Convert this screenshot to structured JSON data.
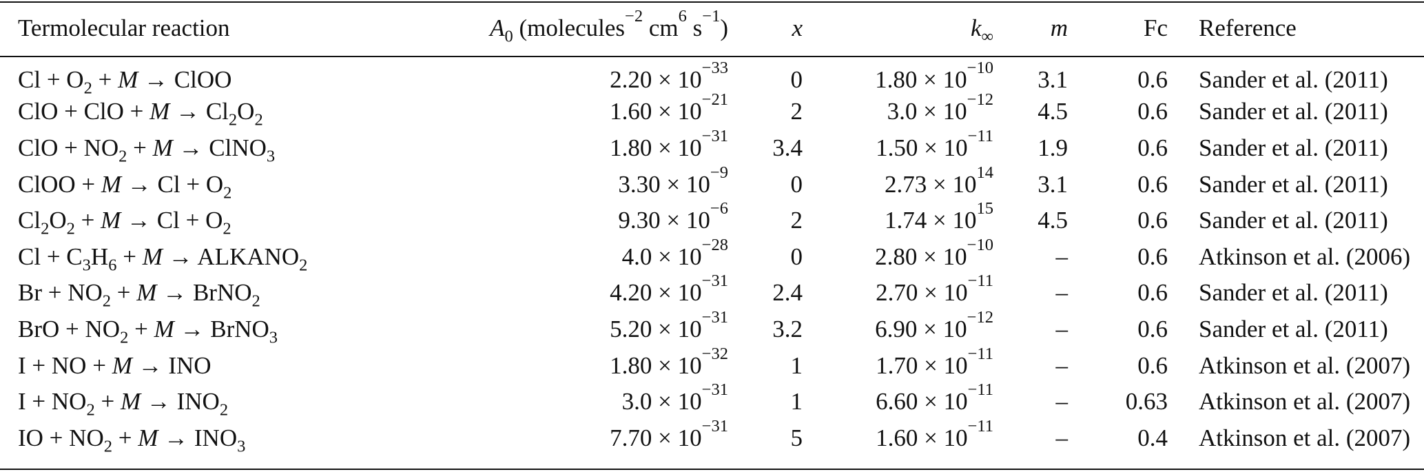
{
  "table": {
    "header": {
      "reaction": "Termolecular reaction",
      "a0_symbol": "A",
      "a0_sub": "0",
      "a0_unit_pre": "(molecules",
      "a0_exp1": "−2",
      "a0_unit_mid": "cm",
      "a0_exp2": "6",
      "a0_unit_s": "s",
      "a0_exp3": "−1",
      "a0_unit_close": ")",
      "x": "x",
      "kinf_symbol": "k",
      "kinf_sub": "∞",
      "m": "m",
      "fc": "Fc",
      "reference": "Reference"
    },
    "rows": [
      {
        "reaction": [
          [
            "t",
            "Cl + O"
          ],
          [
            "sub",
            "2"
          ],
          [
            "t",
            " + "
          ],
          [
            "i",
            "M"
          ],
          [
            "t",
            " → ClOO"
          ]
        ],
        "a0_mant": "2.20",
        "a0_exp": "−33",
        "x": "0",
        "k_mant": "1.80",
        "k_exp": "−10",
        "m": "3.1",
        "fc": "0.6",
        "ref": "Sander et al. (2011)"
      },
      {
        "reaction": [
          [
            "t",
            "ClO + ClO + "
          ],
          [
            "i",
            "M"
          ],
          [
            "t",
            " → Cl"
          ],
          [
            "sub",
            "2"
          ],
          [
            "t",
            "O"
          ],
          [
            "sub",
            "2"
          ]
        ],
        "a0_mant": "1.60",
        "a0_exp": "−21",
        "x": "2",
        "k_mant": "3.0",
        "k_exp": "−12",
        "m": "4.5",
        "fc": "0.6",
        "ref": "Sander et al. (2011)"
      },
      {
        "reaction": [
          [
            "t",
            "ClO + NO"
          ],
          [
            "sub",
            "2"
          ],
          [
            "t",
            " + "
          ],
          [
            "i",
            "M"
          ],
          [
            "t",
            " → ClNO"
          ],
          [
            "sub",
            "3"
          ]
        ],
        "a0_mant": "1.80",
        "a0_exp": "−31",
        "x": "3.4",
        "k_mant": "1.50",
        "k_exp": "−11",
        "m": "1.9",
        "fc": "0.6",
        "ref": "Sander et al. (2011)"
      },
      {
        "reaction": [
          [
            "t",
            "ClOO + "
          ],
          [
            "i",
            "M"
          ],
          [
            "t",
            " → Cl + O"
          ],
          [
            "sub",
            "2"
          ]
        ],
        "a0_mant": "3.30",
        "a0_exp": "−9",
        "x": "0",
        "k_mant": "2.73",
        "k_exp": "14",
        "m": "3.1",
        "fc": "0.6",
        "ref": "Sander et al. (2011)"
      },
      {
        "reaction": [
          [
            "t",
            "Cl"
          ],
          [
            "sub",
            "2"
          ],
          [
            "t",
            "O"
          ],
          [
            "sub",
            "2"
          ],
          [
            "t",
            " + "
          ],
          [
            "i",
            "M"
          ],
          [
            "t",
            " → Cl + O"
          ],
          [
            "sub",
            "2"
          ]
        ],
        "a0_mant": "9.30",
        "a0_exp": "−6",
        "x": "2",
        "k_mant": "1.74",
        "k_exp": "15",
        "m": "4.5",
        "fc": "0.6",
        "ref": "Sander et al. (2011)"
      },
      {
        "reaction": [
          [
            "t",
            "Cl + C"
          ],
          [
            "sub",
            "3"
          ],
          [
            "t",
            "H"
          ],
          [
            "sub",
            "6"
          ],
          [
            "t",
            " + "
          ],
          [
            "i",
            "M"
          ],
          [
            "t",
            " → ALKANO"
          ],
          [
            "sub",
            "2"
          ]
        ],
        "a0_mant": "4.0",
        "a0_exp": "−28",
        "x": "0",
        "k_mant": "2.80",
        "k_exp": "−10",
        "m": "–",
        "fc": "0.6",
        "ref": "Atkinson et al. (2006)"
      },
      {
        "reaction": [
          [
            "t",
            "Br + NO"
          ],
          [
            "sub",
            "2"
          ],
          [
            "t",
            " + "
          ],
          [
            "i",
            "M"
          ],
          [
            "t",
            " → BrNO"
          ],
          [
            "sub",
            "2"
          ]
        ],
        "a0_mant": "4.20",
        "a0_exp": "−31",
        "x": "2.4",
        "k_mant": "2.70",
        "k_exp": "−11",
        "m": "–",
        "fc": "0.6",
        "ref": "Sander et al. (2011)"
      },
      {
        "reaction": [
          [
            "t",
            "BrO + NO"
          ],
          [
            "sub",
            "2"
          ],
          [
            "t",
            " + "
          ],
          [
            "i",
            "M"
          ],
          [
            "t",
            " → BrNO"
          ],
          [
            "sub",
            "3"
          ]
        ],
        "a0_mant": "5.20",
        "a0_exp": "−31",
        "x": "3.2",
        "k_mant": "6.90",
        "k_exp": "−12",
        "m": "–",
        "fc": "0.6",
        "ref": "Sander et al. (2011)"
      },
      {
        "reaction": [
          [
            "t",
            "I + NO + "
          ],
          [
            "i",
            "M"
          ],
          [
            "t",
            " → INO"
          ]
        ],
        "a0_mant": "1.80",
        "a0_exp": "−32",
        "x": "1",
        "k_mant": "1.70",
        "k_exp": "−11",
        "m": "–",
        "fc": "0.6",
        "ref": "Atkinson et al. (2007)"
      },
      {
        "reaction": [
          [
            "t",
            "I + NO"
          ],
          [
            "sub",
            "2"
          ],
          [
            "t",
            " + "
          ],
          [
            "i",
            "M"
          ],
          [
            "t",
            " → INO"
          ],
          [
            "sub",
            "2"
          ]
        ],
        "a0_mant": "3.0",
        "a0_exp": "−31",
        "x": "1",
        "k_mant": "6.60",
        "k_exp": "−11",
        "m": "–",
        "fc": "0.63",
        "ref": "Atkinson et al. (2007)"
      },
      {
        "reaction": [
          [
            "t",
            "IO + NO"
          ],
          [
            "sub",
            "2"
          ],
          [
            "t",
            " + "
          ],
          [
            "i",
            "M"
          ],
          [
            "t",
            " → INO"
          ],
          [
            "sub",
            "3"
          ]
        ],
        "a0_mant": "7.70",
        "a0_exp": "−31",
        "x": "5",
        "k_mant": "1.60",
        "k_exp": "−11",
        "m": "–",
        "fc": "0.4",
        "ref": "Atkinson et al. (2007)"
      }
    ],
    "times_sign": "×",
    "ten": "10"
  }
}
